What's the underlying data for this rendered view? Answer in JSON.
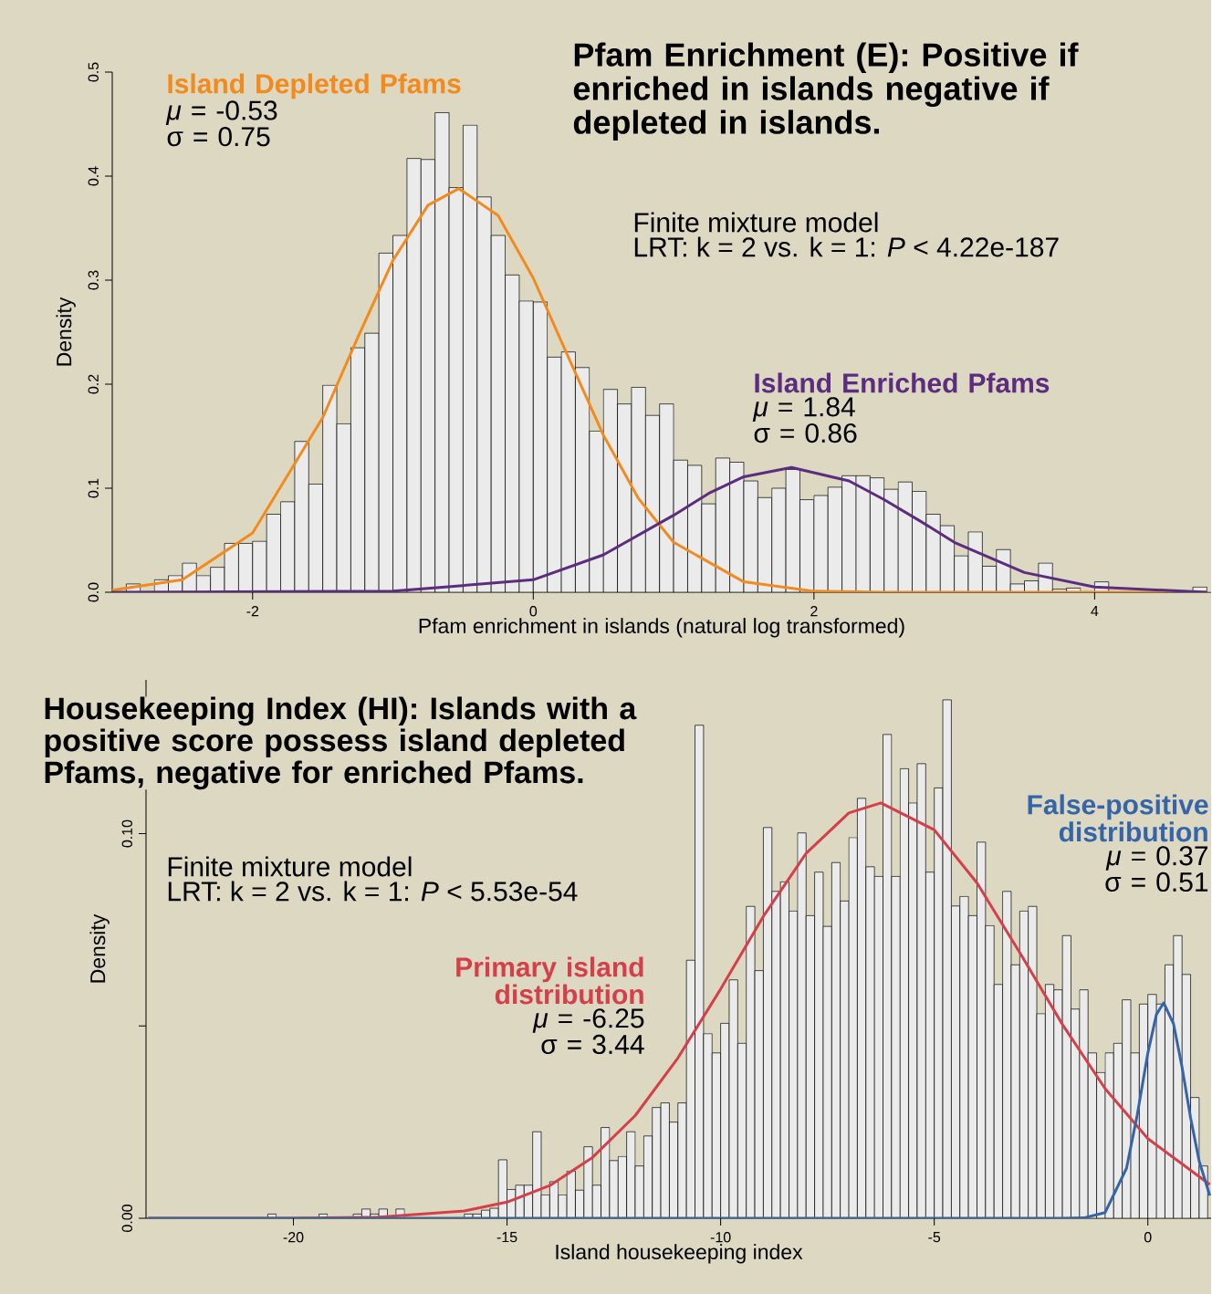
{
  "chart_data": [
    {
      "type": "histogram",
      "title": "Pfam Enrichment (E): Positive if enriched in islands negative if depleted in islands.",
      "xlabel": "Pfam enrichment in islands (natural log transformed)",
      "ylabel": "Density",
      "color": "#ebebeb",
      "bins": [
        -2.9,
        -2.8,
        -2.7,
        -2.6,
        -2.5,
        -2.4,
        -2.3,
        -2.2,
        -2.1,
        -2.0,
        -1.9,
        -1.8,
        -1.7,
        -1.6,
        -1.5,
        -1.4,
        -1.3,
        -1.2,
        -1.1,
        -1.0,
        -0.9,
        -0.8,
        -0.7,
        -0.6,
        -0.5,
        -0.4,
        -0.3,
        -0.2,
        -0.1,
        0.0,
        0.1,
        0.2,
        0.3,
        0.4,
        0.5,
        0.6,
        0.7,
        0.8,
        0.9,
        1.0,
        1.1,
        1.2,
        1.3,
        1.4,
        1.5,
        1.6,
        1.7,
        1.8,
        1.9,
        2.0,
        2.1,
        2.2,
        2.3,
        2.4,
        2.5,
        2.6,
        2.7,
        2.8,
        2.9,
        3.0,
        3.1,
        3.2,
        3.3,
        3.4,
        3.5,
        3.6,
        3.7,
        3.8,
        3.9,
        4.0,
        4.1,
        4.2,
        4.3,
        4.4,
        4.5,
        4.6,
        4.7,
        4.8
      ],
      "values": [
        0.008,
        0,
        0.012,
        0.016,
        0.028,
        0.016,
        0.024,
        0.047,
        0.047,
        0.049,
        0.075,
        0.087,
        0.145,
        0.104,
        0.199,
        0.162,
        0.235,
        0.249,
        0.326,
        0.343,
        0.417,
        0.416,
        0.461,
        0.389,
        0.449,
        0.38,
        0.343,
        0.305,
        0.28,
        0.279,
        0.226,
        0.231,
        0.216,
        0.155,
        0.195,
        0.181,
        0.197,
        0.17,
        0.181,
        0.127,
        0.122,
        0.085,
        0.129,
        0.125,
        0.107,
        0.091,
        0.1,
        0.118,
        0.089,
        0.093,
        0.101,
        0.112,
        0.112,
        0.11,
        0.099,
        0.106,
        0.097,
        0.075,
        0.064,
        0.035,
        0.058,
        0.025,
        0.041,
        0.008,
        0.011,
        0.028,
        0.003,
        0.004,
        0,
        0.01,
        0,
        0,
        0,
        0,
        0,
        0,
        0.005
      ],
      "series": [
        {
          "name": "Island Depleted Pfams",
          "type": "line",
          "color": "#f28a1d",
          "x": [
            -3.0,
            -2.5,
            -2.0,
            -1.5,
            -1.25,
            -1.0,
            -0.75,
            -0.53,
            -0.25,
            0.0,
            0.25,
            0.5,
            0.75,
            1.0,
            1.5,
            2.0,
            2.5,
            3.0,
            4.0,
            4.8
          ],
          "values": [
            0.002,
            0.012,
            0.057,
            0.168,
            0.245,
            0.319,
            0.372,
            0.388,
            0.362,
            0.302,
            0.226,
            0.151,
            0.09,
            0.048,
            0.01,
            0.001,
            0,
            0,
            0,
            0
          ]
        },
        {
          "name": "Island Enriched Pfams",
          "type": "line",
          "color": "#5c2c7f",
          "x": [
            -3.0,
            -1.0,
            0.0,
            0.5,
            1.0,
            1.25,
            1.5,
            1.84,
            2.25,
            2.5,
            2.75,
            3.0,
            3.5,
            4.0,
            4.8
          ],
          "values": [
            0,
            0.001,
            0.012,
            0.036,
            0.074,
            0.095,
            0.111,
            0.12,
            0.107,
            0.089,
            0.069,
            0.048,
            0.019,
            0.005,
            0
          ]
        }
      ],
      "xlim": [
        -3.0,
        4.83
      ],
      "ylim": [
        0,
        0.5
      ],
      "xticks": [
        -2,
        0,
        2,
        4
      ],
      "yticks": [
        {
          "value": 0,
          "label": "0.0"
        },
        0.1,
        0.2,
        0.3,
        0.4,
        0.5
      ],
      "annotations": [
        "Finite mixture model",
        "LRT: k = 2 vs. k = 1: *P* < 4.22e-187",
        "*μ* = -0.53",
        "σ = 0.75",
        "*μ* = 1.84",
        "σ = 0.86"
      ]
    },
    {
      "type": "histogram",
      "title": "Housekeeping Index (HI): Islands with a positive score possess island depleted Pfams, negative for enriched Pfams.",
      "xlabel": "Island housekeeping index",
      "ylabel": "Density",
      "color": "#ebebeb",
      "bins": [
        -20.6,
        -20.4,
        -20.2,
        -20.0,
        -19.8,
        -19.6,
        -19.4,
        -19.2,
        -19.0,
        -18.8,
        -18.6,
        -18.4,
        -18.2,
        -18.0,
        -17.8,
        -17.6,
        -17.4,
        -17.2,
        -17.0,
        -16.8,
        -16.6,
        -16.4,
        -16.2,
        -16.0,
        -15.8,
        -15.6,
        -15.4,
        -15.2,
        -15.0,
        -14.8,
        -14.6,
        -14.4,
        -14.2,
        -14.0,
        -13.8,
        -13.6,
        -13.4,
        -13.2,
        -13.0,
        -12.8,
        -12.6,
        -12.4,
        -12.2,
        -12.0,
        -11.8,
        -11.6,
        -11.4,
        -11.2,
        -11.0,
        -10.8,
        -10.6,
        -10.4,
        -10.2,
        -10.0,
        -9.8,
        -9.6,
        -9.4,
        -9.2,
        -9.0,
        -8.8,
        -8.6,
        -8.4,
        -8.2,
        -8.0,
        -7.8,
        -7.6,
        -7.4,
        -7.2,
        -7.0,
        -6.8,
        -6.6,
        -6.4,
        -6.2,
        -6.0,
        -5.8,
        -5.6,
        -5.4,
        -5.2,
        -5.0,
        -4.8,
        -4.6,
        -4.4,
        -4.2,
        -4.0,
        -3.8,
        -3.6,
        -3.4,
        -3.2,
        -3.0,
        -2.8,
        -2.6,
        -2.4,
        -2.2,
        -2.0,
        -1.8,
        -1.6,
        -1.4,
        -1.2,
        -1.0,
        -0.8,
        -0.6,
        -0.4,
        -0.2,
        0.0,
        0.2,
        0.4,
        0.6,
        0.8,
        1.0,
        1.2,
        1.4
      ],
      "values": [
        0.0011,
        0,
        0,
        0,
        0,
        0,
        0.0011,
        0,
        0,
        0,
        0.0011,
        0.0024,
        0.0011,
        0.0024,
        0,
        0.0024,
        0,
        0,
        0,
        0,
        0,
        0,
        0,
        0.0011,
        0.0011,
        0.0021,
        0.0026,
        0.0152,
        0.0075,
        0.0086,
        0.0086,
        0.0225,
        0.0061,
        0.0095,
        0.0061,
        0.0123,
        0.0073,
        0.0186,
        0.0086,
        0.0236,
        0.015,
        0.0161,
        0.0225,
        0.0136,
        0.0214,
        0.0288,
        0.03,
        0.025,
        0.03,
        0.0671,
        0.1282,
        0.048,
        0.043,
        0.0507,
        0.062,
        0.0455,
        0.0811,
        0.0644,
        0.1016,
        0.085,
        0.0875,
        0.0799,
        0.1002,
        0.0787,
        0.09,
        0.0759,
        0.0925,
        0.0825,
        0.099,
        0.1092,
        0.0914,
        0.0889,
        0.1258,
        0.0889,
        0.1169,
        0.108,
        0.1182,
        0.09,
        0.1119,
        0.1348,
        0.0812,
        0.0837,
        0.0787,
        0.0978,
        0.0761,
        0.0608,
        0.085,
        0.0659,
        0.0799,
        0.0811,
        0.0532,
        0.0608,
        0.0594,
        0.0735,
        0.0544,
        0.0594,
        0.043,
        0.0379,
        0.043,
        0.0455,
        0.0568,
        0.043,
        0.0557,
        0.0582,
        0.0557,
        0.0659,
        0.0735,
        0.0634,
        0.0314,
        0.0136
      ],
      "series": [
        {
          "name": "Primary island distribution",
          "type": "line",
          "color": "#d43f4a",
          "x": [
            -23.4,
            -20,
            -18,
            -16,
            -15,
            -14,
            -13,
            -12,
            -11,
            -10,
            -9,
            -8,
            -7,
            -6.25,
            -5,
            -4,
            -3,
            -2,
            -1,
            0,
            1.45
          ],
          "values": [
            0,
            0,
            0.0003,
            0.0019,
            0.0042,
            0.0085,
            0.0158,
            0.0267,
            0.0417,
            0.0596,
            0.0785,
            0.0949,
            0.1054,
            0.108,
            0.101,
            0.0872,
            0.0691,
            0.0504,
            0.0337,
            0.0207,
            0.0088
          ]
        },
        {
          "name": "False-positive distribution",
          "type": "line",
          "color": "#3565a8",
          "x": [
            -23.4,
            -2,
            -1.5,
            -1,
            -0.5,
            -0.25,
            0,
            0.2,
            0.37,
            0.6,
            0.8,
            1,
            1.2,
            1.45
          ],
          "values": [
            0,
            0,
            0.0001,
            0.0015,
            0.013,
            0.0268,
            0.043,
            0.053,
            0.056,
            0.0506,
            0.0393,
            0.0261,
            0.0149,
            0.0059
          ]
        }
      ],
      "xlim": [
        -23.45,
        1.48
      ],
      "ylim": [
        0,
        0.14
      ],
      "xticks": [
        -20,
        -15,
        -10,
        -5,
        0
      ],
      "yticks": [
        {
          "value": 0,
          "label": "0.00"
        },
        {
          "value": 0.05,
          "label": null
        },
        {
          "value": 0.1,
          "label": "0.10"
        }
      ],
      "annotations": [
        "Finite mixture model",
        "LRT: k = 2 vs. k = 1: *P* < 5.53e-54",
        "*μ* = -6.25",
        "σ = 3.44",
        "*μ* = 0.37",
        "σ = 0.51"
      ]
    }
  ]
}
